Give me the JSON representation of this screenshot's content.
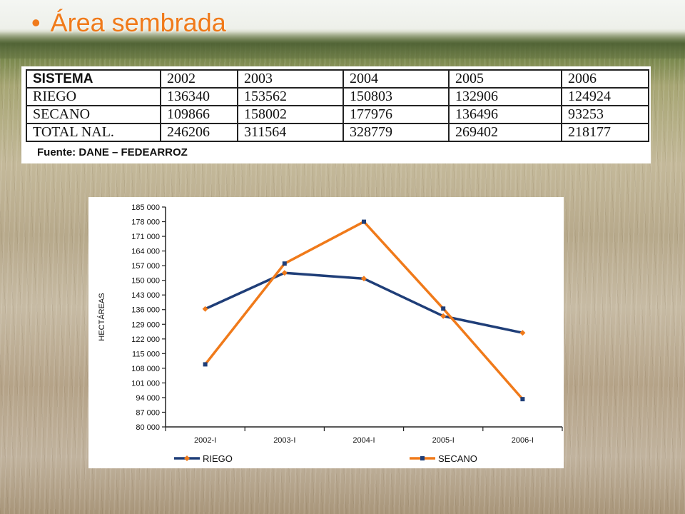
{
  "slide": {
    "bullet": "•",
    "title": "Área sembrada"
  },
  "table": {
    "header": [
      "SISTEMA",
      "2002",
      "2003",
      "2004",
      "2005",
      "2006"
    ],
    "rows": [
      [
        "RIEGO",
        "136340",
        "153562",
        "150803",
        "132906",
        "124924"
      ],
      [
        "SECANO",
        "109866",
        "158002",
        "177976",
        "136496",
        "93253"
      ],
      [
        "TOTAL NAL.",
        "246206",
        "311564",
        "328779",
        "269402",
        "218177"
      ]
    ],
    "source": "Fuente: DANE – FEDEARROZ"
  },
  "chart_data": {
    "type": "line",
    "categories": [
      "2002-I",
      "2003-I",
      "2004-I",
      "2005-I",
      "2006-I"
    ],
    "ylabel": "HECTÁREAS",
    "xlabel": "",
    "ylim": [
      80000,
      185000
    ],
    "yticks": [
      80000,
      87000,
      94000,
      101000,
      108000,
      115000,
      122000,
      129000,
      136000,
      143000,
      150000,
      157000,
      164000,
      171000,
      178000,
      185000
    ],
    "ytick_labels": [
      "80 000",
      "87 000",
      "94 000",
      "101 000",
      "108 000",
      "115 000",
      "122 000",
      "129 000",
      "136 000",
      "143 000",
      "150 000",
      "157 000",
      "164 000",
      "171 000",
      "178 000",
      "185 000"
    ],
    "grid": false,
    "legend_position": "bottom",
    "series": [
      {
        "name": "RIEGO",
        "values": [
          136340,
          153562,
          150803,
          132906,
          124924
        ],
        "color": "#1f3e78",
        "marker_color": "#f07a1a",
        "marker": "diamond"
      },
      {
        "name": "SECANO",
        "values": [
          109866,
          158002,
          177976,
          136496,
          93253
        ],
        "color": "#f07a1a",
        "marker_color": "#1f3e78",
        "marker": "square"
      }
    ]
  }
}
